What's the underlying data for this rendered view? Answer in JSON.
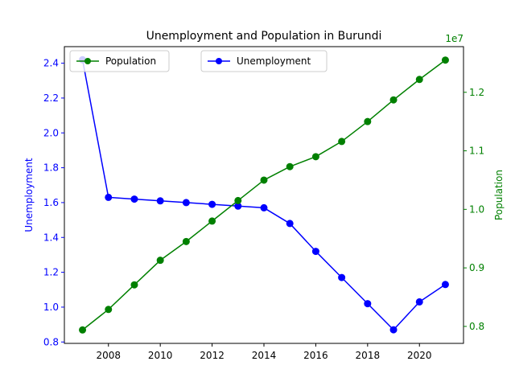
{
  "chart_data": {
    "type": "line",
    "title": "Unemployment and Population in Burundi",
    "x": [
      2007,
      2008,
      2009,
      2010,
      2011,
      2012,
      2013,
      2014,
      2015,
      2016,
      2017,
      2018,
      2019,
      2020,
      2021
    ],
    "xlim": [
      2006.3,
      2021.7
    ],
    "x_ticks": [
      2008,
      2010,
      2012,
      2014,
      2016,
      2018,
      2020
    ],
    "series": [
      {
        "name": "Unemployment",
        "axis": "left",
        "color": "#0000ff",
        "values": [
          2.42,
          1.63,
          1.62,
          1.61,
          1.6,
          1.59,
          1.58,
          1.57,
          1.48,
          1.32,
          1.17,
          1.02,
          0.87,
          1.03,
          1.13
        ]
      },
      {
        "name": "Population",
        "axis": "right",
        "color": "#008000",
        "values": [
          7940000,
          8290000,
          8710000,
          9130000,
          9450000,
          9800000,
          10150000,
          10500000,
          10730000,
          10900000,
          11160000,
          11500000,
          11870000,
          12220000,
          12550000
        ]
      }
    ],
    "y_left": {
      "label": "Unemployment",
      "lim": [
        0.792,
        2.495
      ],
      "ticks": [
        0.8,
        1.0,
        1.2,
        1.4,
        1.6,
        1.8,
        2.0,
        2.2,
        2.4
      ],
      "tick_labels": [
        "0.8",
        "1.0",
        "1.2",
        "1.4",
        "1.6",
        "1.8",
        "2.0",
        "2.2",
        "2.4"
      ]
    },
    "y_right": {
      "label": "Population",
      "offset_text": "1e7",
      "lim": [
        7710000,
        12780000
      ],
      "ticks": [
        8000000,
        9000000,
        10000000,
        11000000,
        12000000
      ],
      "tick_labels": [
        "0.8",
        "0.9",
        "1.0",
        "1.1",
        "1.2"
      ]
    },
    "legends": [
      {
        "position": "upper-left",
        "entries": [
          "Population"
        ]
      },
      {
        "position": "upper-center",
        "entries": [
          "Unemployment"
        ]
      }
    ],
    "grid": false
  }
}
